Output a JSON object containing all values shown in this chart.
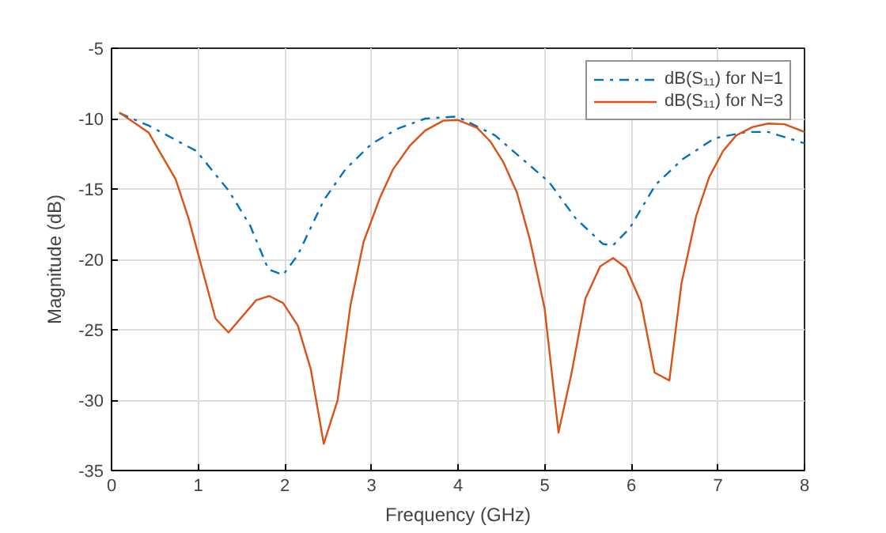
{
  "chart_data": {
    "type": "line",
    "xlabel": "Frequency (GHz)",
    "ylabel": "Magnitude (dB)",
    "xlim": [
      0,
      8
    ],
    "ylim": [
      -35,
      -5
    ],
    "xticks": [
      0,
      1,
      2,
      3,
      4,
      5,
      6,
      7,
      8
    ],
    "yticks": [
      -35,
      -30,
      -25,
      -20,
      -15,
      -10,
      -5
    ],
    "grid": true,
    "legend": "top right",
    "marker": "none",
    "series": [
      {
        "name": "dB(S₁₁) for N=1",
        "color": "#0072bd",
        "line_style": "dashdot",
        "x": [
          0.09,
          0.43,
          0.98,
          1.35,
          1.6,
          1.81,
          1.98,
          2.15,
          2.45,
          2.7,
          3.0,
          3.31,
          3.62,
          3.99,
          4.43,
          4.71,
          5.05,
          5.36,
          5.67,
          5.79,
          5.98,
          6.28,
          6.59,
          6.96,
          7.33,
          7.58,
          8.0
        ],
        "values": [
          -9.6,
          -10.5,
          -12.3,
          -15.1,
          -17.6,
          -20.7,
          -21.1,
          -19.7,
          -15.8,
          -13.6,
          -11.8,
          -10.7,
          -10.0,
          -9.85,
          -11.2,
          -12.7,
          -14.5,
          -17.1,
          -18.9,
          -19.0,
          -17.8,
          -14.7,
          -12.9,
          -11.4,
          -10.95,
          -10.95,
          -11.75
        ]
      },
      {
        "name": "dB(S₁₁) for N=3",
        "color": "#d95319",
        "line_style": "solid",
        "x": [
          0.09,
          0.43,
          0.55,
          0.74,
          0.89,
          1.01,
          1.2,
          1.35,
          1.67,
          1.82,
          1.98,
          2.15,
          2.3,
          2.45,
          2.61,
          2.76,
          2.91,
          3.1,
          3.25,
          3.44,
          3.62,
          3.83,
          4.0,
          4.22,
          4.37,
          4.52,
          4.68,
          4.83,
          5.0,
          5.16,
          5.31,
          5.47,
          5.64,
          5.79,
          5.94,
          6.11,
          6.27,
          6.44,
          6.58,
          6.75,
          6.9,
          7.06,
          7.21,
          7.4,
          7.58,
          7.77,
          8.0
        ],
        "values": [
          -9.56,
          -11.0,
          -12.3,
          -14.3,
          -17.1,
          -19.85,
          -24.2,
          -25.2,
          -22.9,
          -22.6,
          -23.1,
          -24.7,
          -27.8,
          -33.1,
          -30.0,
          -23.2,
          -18.75,
          -15.6,
          -13.6,
          -11.95,
          -10.85,
          -10.15,
          -10.1,
          -10.65,
          -11.6,
          -13.05,
          -15.25,
          -18.6,
          -23.5,
          -32.3,
          -28.1,
          -22.8,
          -20.5,
          -19.9,
          -20.6,
          -23.0,
          -28.05,
          -28.6,
          -21.7,
          -16.9,
          -14.15,
          -12.3,
          -11.2,
          -10.6,
          -10.35,
          -10.4,
          -10.95
        ]
      }
    ]
  }
}
